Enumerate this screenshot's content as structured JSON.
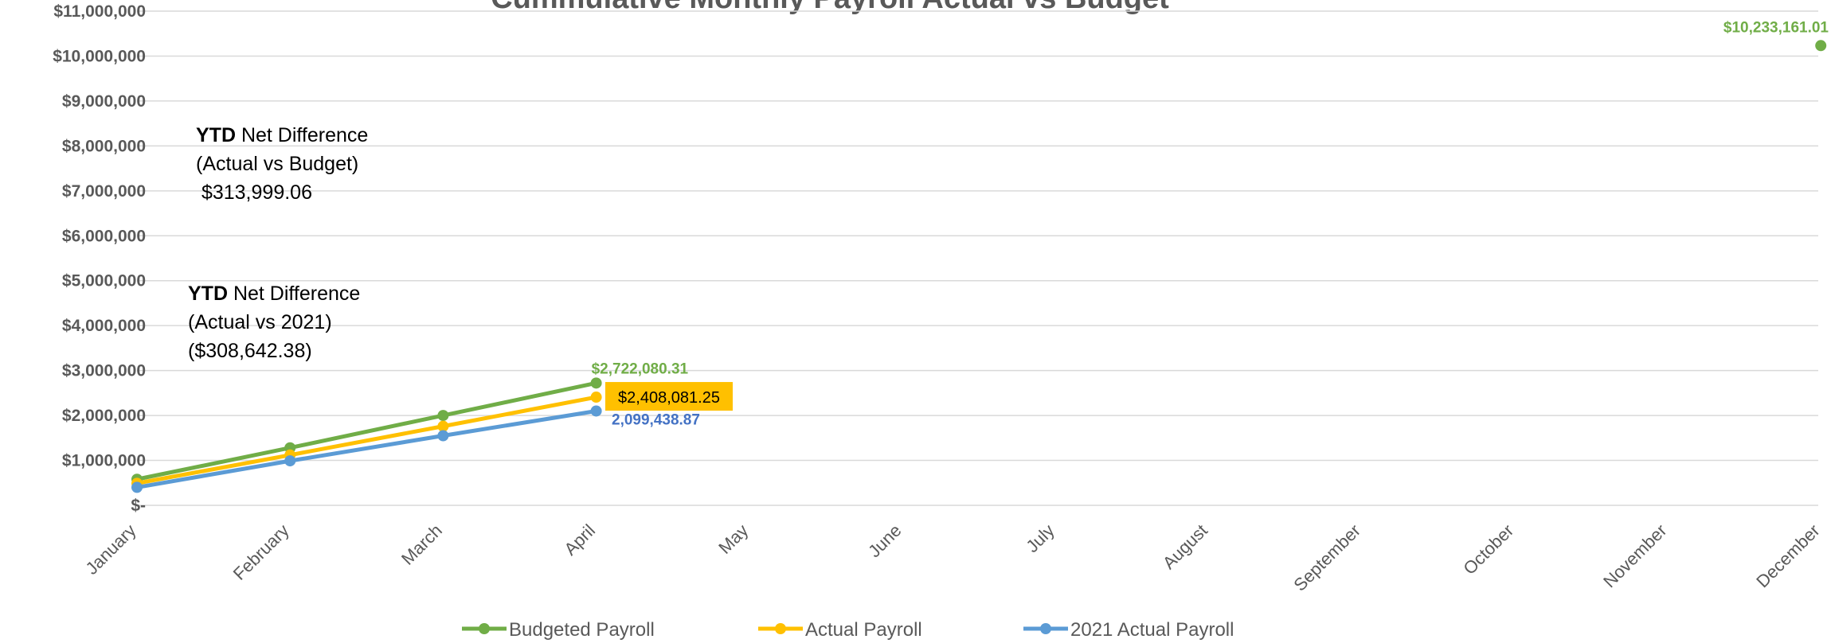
{
  "chart_data": {
    "type": "line",
    "title": "Cummulative Monthly Payroll Actual vs Budget",
    "categories": [
      "January",
      "February",
      "March",
      "April",
      "May",
      "June",
      "July",
      "August",
      "September",
      "October",
      "November",
      "December"
    ],
    "y_tick_labels": [
      "$-",
      "$1,000,000",
      "$2,000,000",
      "$3,000,000",
      "$4,000,000",
      "$5,000,000",
      "$6,000,000",
      "$7,000,000",
      "$8,000,000",
      "$9,000,000",
      "$10,000,000",
      "$11,000,000"
    ],
    "ylim": [
      0,
      11000000
    ],
    "grid": true,
    "legend_position": "bottom",
    "series": [
      {
        "name": "Budgeted Payroll",
        "color": "#70AD47",
        "values": [
          580000,
          1280000,
          2000000,
          2722080.31,
          null,
          null,
          null,
          null,
          null,
          null,
          null,
          10233161.01
        ],
        "labels": [
          {
            "index": 3,
            "text": "$2,722,080.31"
          },
          {
            "index": 11,
            "text": "$10,233,161.01"
          }
        ]
      },
      {
        "name": "Actual Payroll",
        "color": "#FFC000",
        "values": [
          490000,
          1120000,
          1760000,
          2408081.25,
          null,
          null,
          null,
          null,
          null,
          null,
          null,
          null
        ],
        "labels": [
          {
            "index": 3,
            "text": "$2,408,081.25"
          }
        ]
      },
      {
        "name": "2021 Actual Payroll",
        "color": "#5B9BD5",
        "values": [
          400000,
          990000,
          1550000,
          2099438.87,
          null,
          null,
          null,
          null,
          null,
          null,
          null,
          null
        ],
        "labels": [
          {
            "index": 3,
            "text": "2,099,438.87"
          }
        ]
      }
    ],
    "annotations": [
      {
        "bold": "YTD",
        "line1": " Net Difference",
        "line2": "(Actual vs Budget)",
        "line3": " $313,999.06"
      },
      {
        "bold": "YTD",
        "line1": " Net Difference",
        "line2": "(Actual vs 2021)",
        "line3": "($308,642.38)"
      }
    ]
  }
}
